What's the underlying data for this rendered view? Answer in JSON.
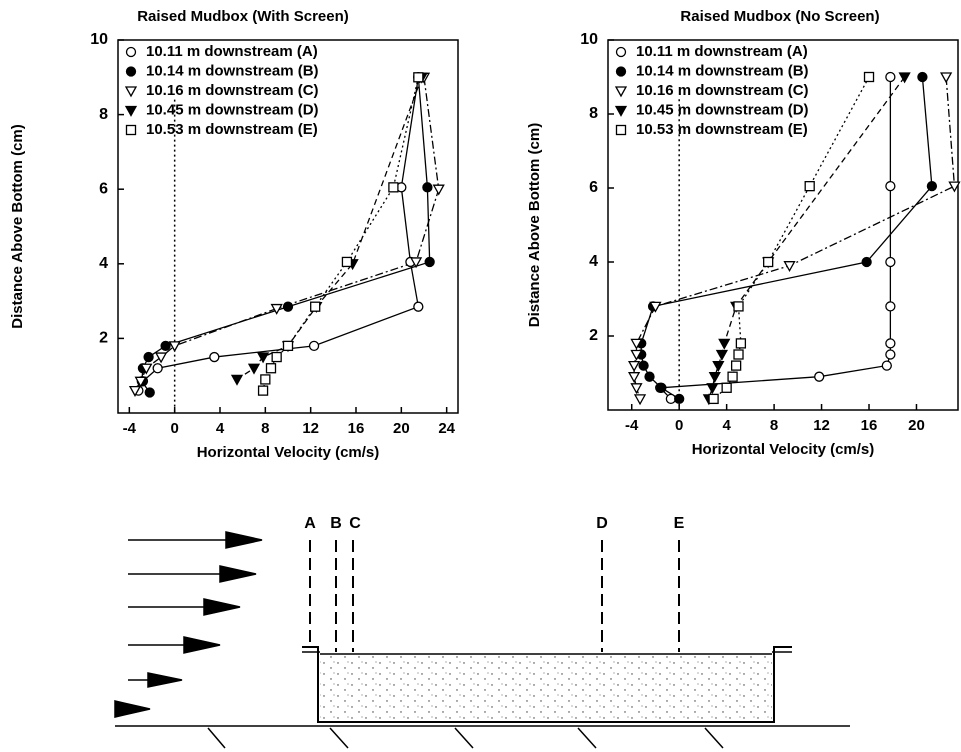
{
  "chart_data": [
    {
      "type": "scatter",
      "title": "Raised Mudbox (With Screen)",
      "x_label": "Horizontal Velocity (cm/s)",
      "y_label": "Distance Above Bottom (cm)",
      "xlim": [
        -5,
        25
      ],
      "xticks": [
        -4,
        0,
        4,
        8,
        12,
        16,
        20,
        24
      ],
      "ylim": [
        0,
        10
      ],
      "yticks": [
        2,
        4,
        6,
        8,
        10
      ],
      "zero_line": true,
      "legend": "upper left",
      "series": [
        {
          "name": "10.11 m downstream (A)",
          "marker": "open-circle",
          "line_style": "solid",
          "color": "#000000",
          "x": [
            21.5,
            20,
            20.8,
            21.5,
            12.3,
            3.5,
            -1.5,
            -2.8,
            -3.2
          ],
          "values": [
            9,
            6.05,
            4.05,
            2.85,
            1.8,
            1.5,
            1.2,
            0.85,
            0.6
          ]
        },
        {
          "name": "10.14 m downstream (B)",
          "marker": "filled-circle",
          "line_style": "solid",
          "color": "#000000",
          "x": [
            21.5,
            22.3,
            22.5,
            10,
            -0.8,
            -2.3,
            -2.8,
            -2.9,
            -2.2
          ],
          "values": [
            9,
            6.05,
            4.05,
            2.85,
            1.8,
            1.5,
            1.2,
            0.85,
            0.55
          ]
        },
        {
          "name": "10.16 m downstream (C)",
          "marker": "open-triangle",
          "line_style": "dashdot",
          "color": "#000000",
          "x": [
            22,
            23.3,
            21.3,
            9,
            0,
            -1.2,
            -2.5,
            -3,
            -3.5
          ],
          "values": [
            9,
            6,
            4.05,
            2.8,
            1.8,
            1.5,
            1.2,
            0.85,
            0.6
          ]
        },
        {
          "name": "10.45 m downstream (D)",
          "marker": "filled-triangle",
          "line_style": "dashed",
          "color": "#000000",
          "x": [
            21.8,
            15.7,
            12.5,
            10,
            7.8,
            7,
            5.5
          ],
          "values": [
            9,
            4,
            2.85,
            1.8,
            1.5,
            1.2,
            0.9
          ]
        },
        {
          "name": "10.53 m downstream (E)",
          "marker": "open-square",
          "line_style": "dotted",
          "color": "#000000",
          "x": [
            21.5,
            19.3,
            15.2,
            12.4,
            10,
            9,
            8.5,
            8,
            7.8
          ],
          "values": [
            9,
            6.05,
            4.05,
            2.85,
            1.8,
            1.5,
            1.2,
            0.9,
            0.6
          ]
        }
      ]
    },
    {
      "type": "scatter",
      "title": "Raised Mudbox (No Screen)",
      "x_label": "Horizontal Velocity (cm/s)",
      "y_label": "Distance Above Bottom (cm)",
      "xlim": [
        -6,
        23.5
      ],
      "xticks": [
        -4,
        0,
        4,
        8,
        12,
        16,
        20
      ],
      "ylim": [
        0,
        10
      ],
      "yticks": [
        2,
        4,
        6,
        8,
        10
      ],
      "zero_line": true,
      "legend": "upper left",
      "series": [
        {
          "name": "10.11 m downstream (A)",
          "marker": "open-circle",
          "line_style": "solid",
          "color": "#000000",
          "x": [
            17.8,
            17.8,
            17.8,
            17.8,
            17.8,
            17.8,
            17.5,
            11.8,
            -1.6,
            -0.7
          ],
          "values": [
            9,
            6.05,
            4,
            2.8,
            1.8,
            1.5,
            1.2,
            0.9,
            0.6,
            0.3
          ]
        },
        {
          "name": "10.14 m downstream (B)",
          "marker": "filled-circle",
          "line_style": "solid",
          "color": "#000000",
          "x": [
            20.5,
            21.3,
            15.8,
            -2.2,
            -3.2,
            -3.2,
            -3,
            -2.5,
            -1.5,
            0
          ],
          "values": [
            9,
            6.05,
            4,
            2.8,
            1.8,
            1.5,
            1.2,
            0.9,
            0.6,
            0.3
          ]
        },
        {
          "name": "10.16 m downstream (C)",
          "marker": "open-triangle",
          "line_style": "dashdot",
          "color": "#000000",
          "x": [
            22.5,
            23.2,
            9.3,
            -2,
            -3.6,
            -3.6,
            -3.8,
            -3.8,
            -3.6,
            -3.3
          ],
          "values": [
            9,
            6.05,
            3.9,
            2.8,
            1.8,
            1.5,
            1.2,
            0.9,
            0.6,
            0.3
          ]
        },
        {
          "name": "10.45 m downstream (D)",
          "marker": "filled-triangle",
          "line_style": "dashed",
          "color": "#000000",
          "x": [
            19,
            7.5,
            4.8,
            3.8,
            3.6,
            3.3,
            3,
            2.8,
            2.5
          ],
          "values": [
            9,
            4,
            2.8,
            1.8,
            1.5,
            1.2,
            0.9,
            0.6,
            0.3
          ]
        },
        {
          "name": "10.53 m downstream (E)",
          "marker": "open-square",
          "line_style": "dotted",
          "color": "#000000",
          "x": [
            16,
            11,
            7.5,
            5,
            5.2,
            5,
            4.8,
            4.5,
            4,
            2.9
          ],
          "values": [
            9,
            6.05,
            4,
            2.8,
            1.8,
            1.5,
            1.2,
            0.9,
            0.6,
            0.3
          ]
        }
      ]
    }
  ],
  "diagram": {
    "stations": [
      "A",
      "B",
      "C",
      "D",
      "E"
    ]
  }
}
